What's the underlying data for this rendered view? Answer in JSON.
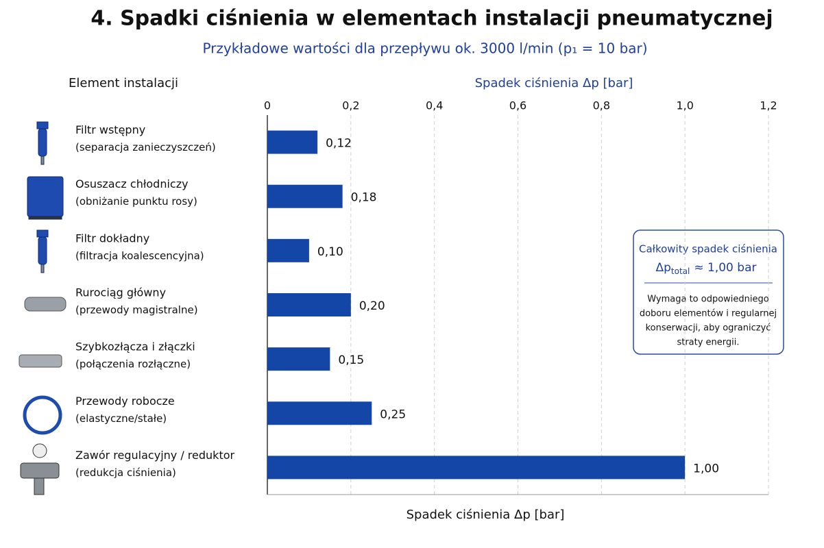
{
  "chart_data": {
    "type": "hbar",
    "title": "4. Spadki ciśnienia w elementach instalacji pneumatycznej",
    "subtitle": "Przykładowe wartości dla przepływu ok. 3000 l/min (p₁ = 10 bar)",
    "category_header": "Element instalacji",
    "xlabel": "Spadek ciśnienia Δp [bar]",
    "categories": [
      "Filtr wstępny",
      "Osuszacz chłodniczy",
      "Filtr dokładny",
      "Rurociąg główny",
      "Szybkozłącza i złączki",
      "Przewody robocze",
      "Zawór regulacyjny / reduktor"
    ],
    "category_notes": [
      "(separacja zanieczyszczeń)",
      "(obniżanie punktu rosy)",
      "(filtracja koalescencyjna)",
      "(przewody magistralne)",
      "(połączenia rozłączne)",
      "(elastyczne/stałe)",
      "(redukcja ciśnienia)"
    ],
    "values": [
      0.12,
      0.18,
      0.1,
      0.2,
      0.15,
      0.25,
      1.0
    ],
    "value_labels": [
      "0,12",
      "0,18",
      "0,10",
      "0,20",
      "0,15",
      "0,25",
      "1,00"
    ],
    "color": "#1446a8",
    "xlim": [
      0,
      1.2
    ],
    "xticks": [
      0,
      {
        "value": 0.2,
        "label": "0,2"
      },
      {
        "value": 0.4,
        "label": "0,4"
      },
      {
        "value": 0.6,
        "label": "0,6"
      },
      {
        "value": 0.8,
        "label": "0,8"
      },
      {
        "value": 1.0,
        "label": "1,0"
      },
      {
        "value": 1.2,
        "label": "1,2"
      }
    ],
    "grid": true,
    "annotation": {
      "title": "Całkowity spadek ciśnienia",
      "symbol": "Δp",
      "subscript": "total",
      "value_text": "≈ 1,00 bar",
      "note_lines": [
        "Wymaga to odpowiedniego",
        "doboru elementów i regularnej",
        "konserwacji, aby ograniczyć",
        "straty energii."
      ]
    }
  }
}
